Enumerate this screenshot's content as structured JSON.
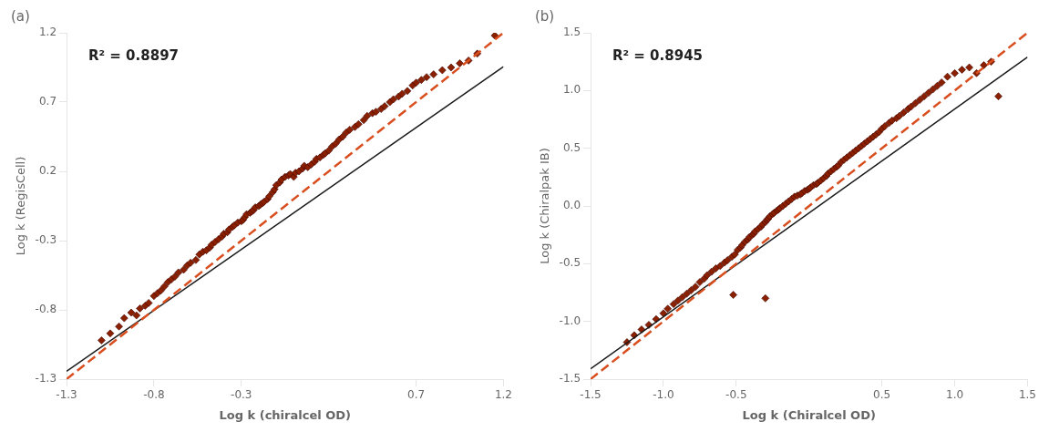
{
  "chart_data": [
    {
      "type": "scatter",
      "title": "(a)",
      "annotation": "R² = 0.8897",
      "xlabel": "Log k (chiralcel OD)",
      "ylabel": "Log k (RegisCell)",
      "xlim": [
        -1.3,
        1.2
      ],
      "ylim": [
        -1.3,
        1.2
      ],
      "xticks": [
        -1.3,
        -0.8,
        -0.3,
        0.7,
        1.2
      ],
      "yticks": [
        -1.3,
        -0.8,
        -0.3,
        0.2,
        0.7,
        1.2
      ],
      "grid": false,
      "series": [
        {
          "type": "line",
          "color": "#D94E1F",
          "line_style": "dashed",
          "x": [
            -1.3,
            1.2
          ],
          "values": [
            -1.3,
            1.2
          ]
        },
        {
          "type": "line",
          "color": "#1a1a1a",
          "line_style": "solid",
          "x": [
            -1.3,
            1.2
          ],
          "values": [
            -1.244,
            0.956
          ]
        },
        {
          "type": "scatter",
          "color": "#8B2000",
          "marker": "diamond",
          "x": [
            -1.1,
            -1.05,
            -1.0,
            -0.97,
            -0.93,
            -0.9,
            -0.88,
            -0.85,
            -0.83,
            -0.8,
            -0.78,
            -0.76,
            -0.74,
            -0.72,
            -0.7,
            -0.68,
            -0.66,
            -0.63,
            -0.61,
            -0.59,
            -0.56,
            -0.54,
            -0.52,
            -0.5,
            -0.48,
            -0.47,
            -0.45,
            -0.43,
            -0.41,
            -0.4,
            -0.38,
            -0.37,
            -0.35,
            -0.34,
            -0.32,
            -0.3,
            -0.29,
            -0.28,
            -0.27,
            -0.25,
            -0.24,
            -0.23,
            -0.22,
            -0.2,
            -0.19,
            -0.18,
            -0.17,
            -0.15,
            -0.14,
            -0.12,
            -0.11,
            -0.1,
            -0.08,
            -0.07,
            -0.05,
            -0.03,
            -0.02,
            0.0,
            0.01,
            0.03,
            0.05,
            0.06,
            0.08,
            0.1,
            0.12,
            0.13,
            0.15,
            0.17,
            0.18,
            0.2,
            0.22,
            0.24,
            0.26,
            0.28,
            0.3,
            0.32,
            0.35,
            0.37,
            0.4,
            0.42,
            0.45,
            0.47,
            0.5,
            0.52,
            0.55,
            0.57,
            0.6,
            0.62,
            0.65,
            0.68,
            0.7,
            0.73,
            0.76,
            0.8,
            0.85,
            0.9,
            0.95,
            1.0,
            1.05,
            1.15
          ],
          "values": [
            -1.02,
            -0.97,
            -0.92,
            -0.86,
            -0.82,
            -0.84,
            -0.79,
            -0.77,
            -0.75,
            -0.7,
            -0.68,
            -0.66,
            -0.63,
            -0.6,
            -0.58,
            -0.56,
            -0.53,
            -0.51,
            -0.48,
            -0.46,
            -0.44,
            -0.4,
            -0.38,
            -0.37,
            -0.35,
            -0.33,
            -0.31,
            -0.29,
            -0.27,
            -0.25,
            -0.24,
            -0.22,
            -0.2,
            -0.19,
            -0.17,
            -0.16,
            -0.15,
            -0.13,
            -0.11,
            -0.1,
            -0.09,
            -0.08,
            -0.06,
            -0.05,
            -0.04,
            -0.03,
            -0.02,
            0.0,
            0.02,
            0.05,
            0.07,
            0.1,
            0.12,
            0.14,
            0.16,
            0.17,
            0.18,
            0.16,
            0.19,
            0.2,
            0.22,
            0.24,
            0.23,
            0.25,
            0.27,
            0.29,
            0.3,
            0.32,
            0.33,
            0.35,
            0.38,
            0.4,
            0.43,
            0.45,
            0.48,
            0.5,
            0.52,
            0.54,
            0.57,
            0.6,
            0.62,
            0.63,
            0.65,
            0.67,
            0.7,
            0.72,
            0.74,
            0.76,
            0.78,
            0.82,
            0.84,
            0.86,
            0.88,
            0.9,
            0.93,
            0.95,
            0.98,
            1.0,
            1.05,
            1.18
          ]
        }
      ]
    },
    {
      "type": "scatter",
      "title": "(b)",
      "annotation": "R² = 0.8945",
      "xlabel": "Log k (Chiralcel OD)",
      "ylabel": "Log k (Chiralpak IB)",
      "xlim": [
        -1.5,
        1.5
      ],
      "ylim": [
        -1.5,
        1.5
      ],
      "xticks": [
        -1.5,
        {
          "value": -1,
          "label": "-1.0"
        },
        -0.5,
        0.5,
        {
          "value": 1,
          "label": "1.0"
        },
        1.5
      ],
      "yticks": [
        -1.5,
        {
          "value": -1,
          "label": "-1.0"
        },
        -0.5,
        {
          "value": 0,
          "label": "0.0"
        },
        0.5,
        {
          "value": 1,
          "label": "1.0"
        },
        1.5
      ],
      "grid": false,
      "series": [
        {
          "type": "line",
          "color": "#D94E1F",
          "line_style": "dashed",
          "x": [
            -1.5,
            1.5
          ],
          "values": [
            -1.5,
            1.5
          ]
        },
        {
          "type": "line",
          "color": "#1a1a1a",
          "line_style": "solid",
          "x": [
            -1.5,
            1.5
          ],
          "values": [
            -1.41,
            1.29
          ]
        },
        {
          "type": "scatter",
          "color": "#8B2000",
          "marker": "diamond",
          "x": [
            -1.25,
            -1.2,
            -1.15,
            -1.1,
            -1.05,
            -1.0,
            -0.97,
            -0.93,
            -0.9,
            -0.87,
            -0.84,
            -0.81,
            -0.78,
            -0.75,
            -0.72,
            -0.7,
            -0.67,
            -0.64,
            -0.61,
            -0.58,
            -0.56,
            -0.53,
            -0.51,
            -0.52,
            -0.49,
            -0.47,
            -0.46,
            -0.44,
            -0.42,
            -0.41,
            -0.39,
            -0.38,
            -0.37,
            -0.35,
            -0.33,
            -0.32,
            -0.3,
            -0.29,
            -0.28,
            -0.27,
            -0.25,
            -0.24,
            -0.22,
            -0.21,
            -0.2,
            -0.18,
            -0.16,
            -0.14,
            -0.12,
            -0.1,
            -0.08,
            -0.06,
            -0.05,
            -0.03,
            -0.01,
            0.0,
            0.01,
            0.03,
            0.05,
            0.06,
            0.08,
            0.1,
            0.12,
            0.13,
            0.15,
            0.17,
            0.19,
            0.2,
            0.22,
            0.24,
            0.26,
            0.28,
            0.3,
            0.32,
            0.34,
            0.36,
            0.38,
            0.4,
            0.42,
            0.44,
            0.46,
            0.48,
            0.5,
            0.52,
            0.55,
            0.57,
            0.6,
            0.62,
            0.65,
            0.68,
            0.7,
            0.73,
            0.76,
            0.79,
            0.82,
            0.85,
            0.88,
            0.91,
            0.95,
            1.0,
            1.05,
            1.1,
            1.15,
            1.2,
            1.25,
            1.3,
            -0.3
          ],
          "values": [
            -1.18,
            -1.12,
            -1.07,
            -1.03,
            -0.98,
            -0.93,
            -0.89,
            -0.85,
            -0.82,
            -0.79,
            -0.76,
            -0.73,
            -0.7,
            -0.66,
            -0.63,
            -0.6,
            -0.57,
            -0.54,
            -0.52,
            -0.49,
            -0.47,
            -0.44,
            -0.42,
            -0.77,
            -0.38,
            -0.36,
            -0.34,
            -0.31,
            -0.29,
            -0.27,
            -0.25,
            -0.24,
            -0.22,
            -0.2,
            -0.18,
            -0.16,
            -0.14,
            -0.12,
            -0.11,
            -0.09,
            -0.07,
            -0.06,
            -0.04,
            -0.03,
            -0.02,
            0.0,
            0.02,
            0.04,
            0.06,
            0.08,
            0.09,
            0.1,
            0.11,
            0.13,
            0.14,
            0.15,
            0.16,
            0.18,
            0.19,
            0.2,
            0.22,
            0.24,
            0.26,
            0.28,
            0.3,
            0.32,
            0.34,
            0.35,
            0.38,
            0.4,
            0.42,
            0.44,
            0.46,
            0.48,
            0.5,
            0.52,
            0.54,
            0.56,
            0.58,
            0.6,
            0.62,
            0.64,
            0.67,
            0.69,
            0.72,
            0.74,
            0.76,
            0.78,
            0.81,
            0.84,
            0.86,
            0.89,
            0.92,
            0.95,
            0.98,
            1.01,
            1.04,
            1.07,
            1.12,
            1.15,
            1.18,
            1.2,
            1.15,
            1.22,
            1.25,
            0.95,
            -0.8
          ]
        }
      ]
    }
  ]
}
